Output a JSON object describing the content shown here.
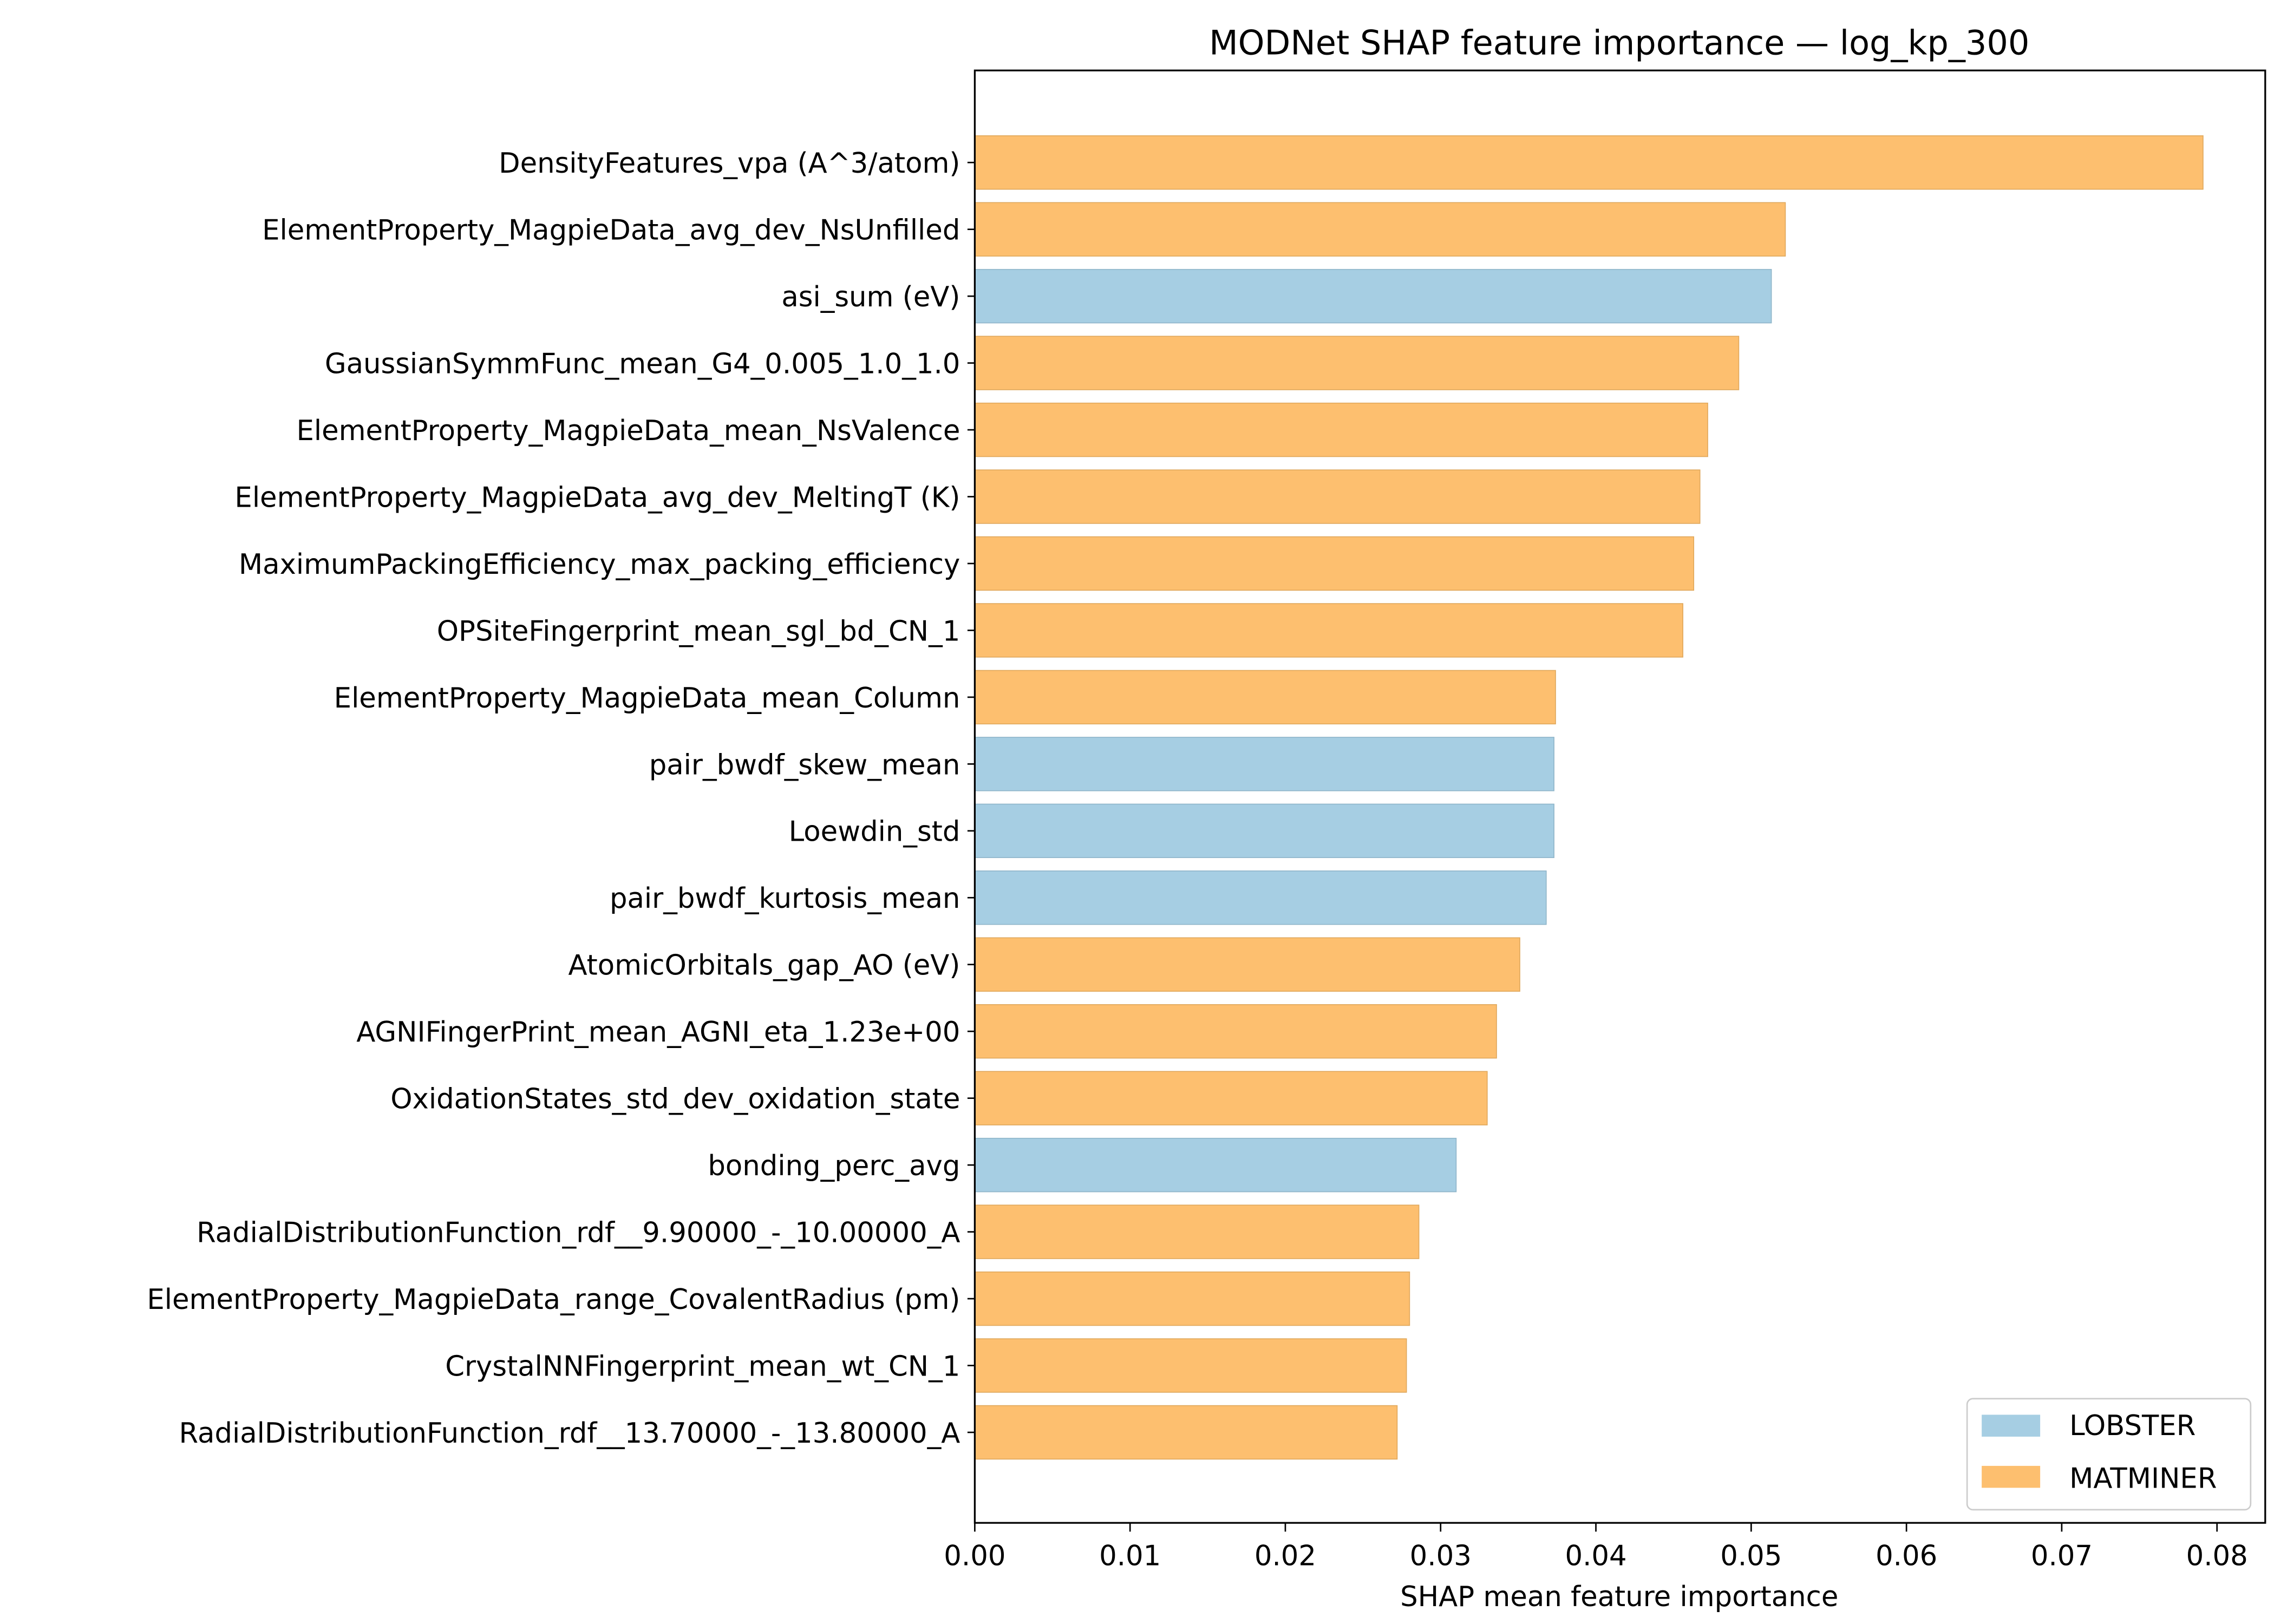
{
  "chart_data": {
    "type": "bar",
    "orientation": "horizontal",
    "title": "MODNet SHAP feature importance — log_kp_300",
    "xlabel": "SHAP mean feature importance",
    "ylabel": "",
    "xlim": [
      0,
      0.0833
    ],
    "xticks": [
      "0.00",
      "0.01",
      "0.02",
      "0.03",
      "0.04",
      "0.05",
      "0.06",
      "0.07",
      "0.08"
    ],
    "grid": false,
    "legend_position": "bottom-right",
    "colors": {
      "LOBSTER": "#a6cee3",
      "MATMINER": "#fdbf6f"
    },
    "legend": [
      "LOBSTER",
      "MATMINER"
    ],
    "categories": [
      "DensityFeatures_vpa (A^3/atom)",
      "ElementProperty_MagpieData_avg_dev_NsUnfilled",
      "asi_sum (eV)",
      "GaussianSymmFunc_mean_G4_0.005_1.0_1.0",
      "ElementProperty_MagpieData_mean_NsValence",
      "ElementProperty_MagpieData_avg_dev_MeltingT (K)",
      "MaximumPackingEfficiency_max_packing_efficiency",
      "OPSiteFingerprint_mean_sgl_bd_CN_1",
      "ElementProperty_MagpieData_mean_Column",
      "pair_bwdf_skew_mean",
      "Loewdin_std",
      "pair_bwdf_kurtosis_mean",
      "AtomicOrbitals_gap_AO (eV)",
      "AGNIFingerPrint_mean_AGNI_eta_1.23e+00",
      "OxidationStates_std_dev_oxidation_state",
      "bonding_perc_avg",
      "RadialDistributionFunction_rdf__9.90000_-_10.00000_A",
      "ElementProperty_MagpieData_range_CovalentRadius (pm)",
      "CrystalNNFingerprint_mean_wt_CN_1",
      "RadialDistributionFunction_rdf__13.70000_-_13.80000_A"
    ],
    "values": [
      0.0791,
      0.0522,
      0.0513,
      0.0492,
      0.0472,
      0.0467,
      0.0463,
      0.0456,
      0.0374,
      0.0373,
      0.0373,
      0.0368,
      0.0351,
      0.0336,
      0.033,
      0.031,
      0.0286,
      0.028,
      0.0278,
      0.0272
    ],
    "groups": [
      "MATMINER",
      "MATMINER",
      "LOBSTER",
      "MATMINER",
      "MATMINER",
      "MATMINER",
      "MATMINER",
      "MATMINER",
      "MATMINER",
      "LOBSTER",
      "LOBSTER",
      "LOBSTER",
      "MATMINER",
      "MATMINER",
      "MATMINER",
      "LOBSTER",
      "MATMINER",
      "MATMINER",
      "MATMINER",
      "MATMINER"
    ]
  }
}
